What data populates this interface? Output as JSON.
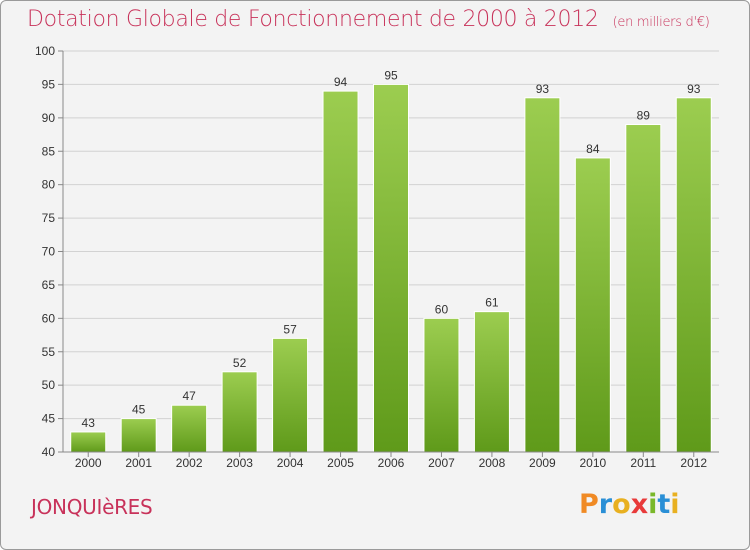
{
  "header": {
    "title": "Dotation Globale de Fonctionnement de 2000 à 2012",
    "subtitle": "(en milliers d'€)"
  },
  "footer": {
    "town": "JONQUIèRES"
  },
  "logo": {
    "letters": [
      "P",
      "r",
      "o",
      "x",
      "i",
      "t",
      "i"
    ],
    "colors": [
      "#f08a24",
      "#2a8fd6",
      "#e8b020",
      "#e83a3a",
      "#7ab82a",
      "#2a8fd6",
      "#e8b020"
    ]
  },
  "colors": {
    "bar_top": "#9ccd50",
    "bar_bottom": "#5f9a1a",
    "title": "#c8325a"
  },
  "chart_data": {
    "type": "bar",
    "categories": [
      "2000",
      "2001",
      "2002",
      "2003",
      "2004",
      "2005",
      "2006",
      "2007",
      "2008",
      "2009",
      "2010",
      "2011",
      "2012"
    ],
    "values": [
      43,
      45,
      47,
      52,
      57,
      94,
      95,
      60,
      61,
      93,
      84,
      89,
      93
    ],
    "ylim": [
      40,
      100
    ],
    "yticks": [
      40,
      45,
      50,
      55,
      60,
      65,
      70,
      75,
      80,
      85,
      90,
      95,
      100
    ],
    "grid": true,
    "data_labels": true
  }
}
